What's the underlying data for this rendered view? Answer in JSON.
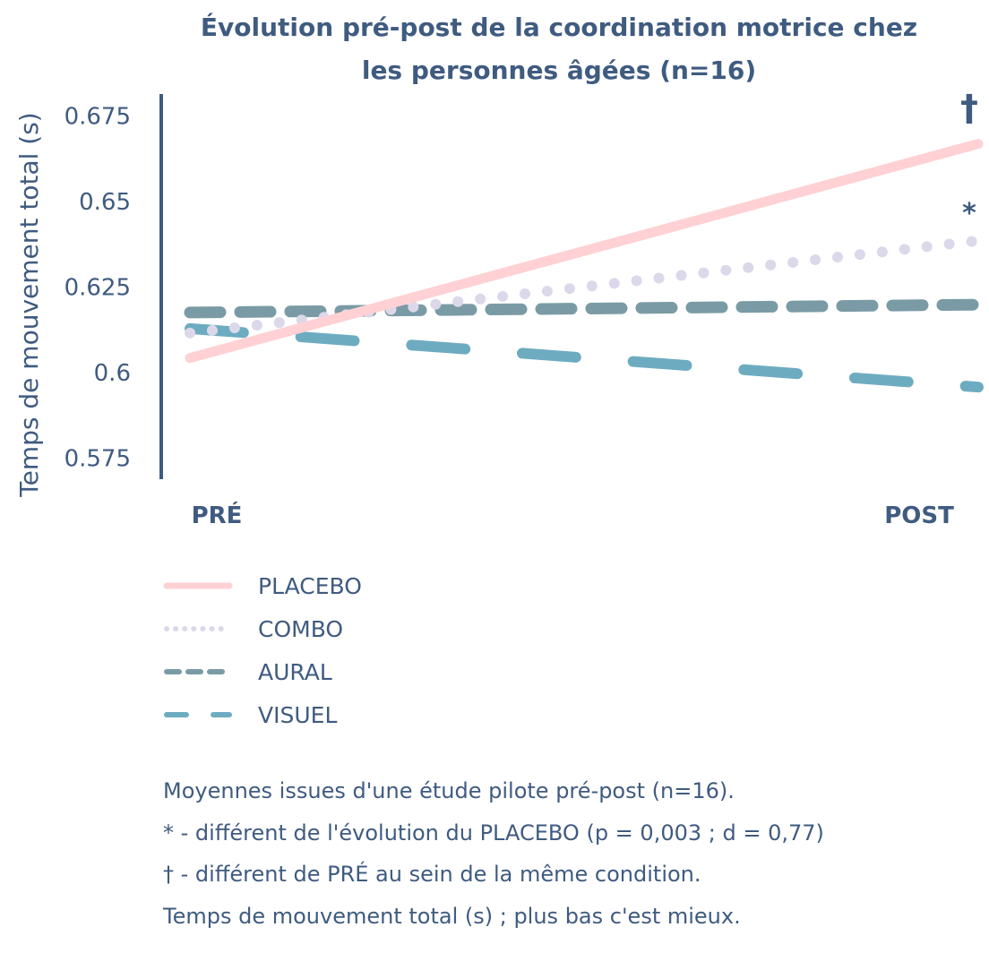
{
  "chart_data": {
    "type": "line",
    "title": [
      "Évolution pré-post de la coordination motrice chez",
      "les personnes âgées (n=16)"
    ],
    "xlabel": "",
    "ylabel": "Temps de mouvement total (s)",
    "categories": [
      "PRÉ",
      "POST"
    ],
    "ylim": [
      0.57,
      0.683
    ],
    "yticks": [
      0.575,
      0.6,
      0.625,
      0.65,
      0.675
    ],
    "ytick_labels": [
      "0.575",
      "0.6",
      "0.625",
      "0.65",
      "0.675"
    ],
    "grid": false,
    "legend_position": "bottom-left",
    "series": [
      {
        "name": "PLACEBO",
        "values": [
          0.604,
          0.6666
        ],
        "color": "#ffd1d4",
        "style": "solid",
        "annotation": "†"
      },
      {
        "name": "COMBO",
        "values": [
          0.6113,
          0.6383
        ],
        "color": "#dcd8ea",
        "style": "dotted",
        "annotation": "*"
      },
      {
        "name": "AURAL",
        "values": [
          0.6173,
          0.6196
        ],
        "color": "#7a9ba5",
        "style": "dashed",
        "annotation": ""
      },
      {
        "name": "VISUEL",
        "values": [
          0.6126,
          0.5955
        ],
        "color": "#6dacc0",
        "style": "longdash",
        "annotation": ""
      }
    ]
  },
  "notes": [
    "Moyennes issues d'une étude pilote pré-post (n=16).",
    "* - différent de l'évolution du PLACEBO (p = 0,003 ; d = 0,77)",
    "† - différent de PRÉ au sein de la même condition.",
    "Temps de mouvement total (s) ; plus bas c'est mieux."
  ],
  "colors": {
    "text": "#3f5b80"
  }
}
